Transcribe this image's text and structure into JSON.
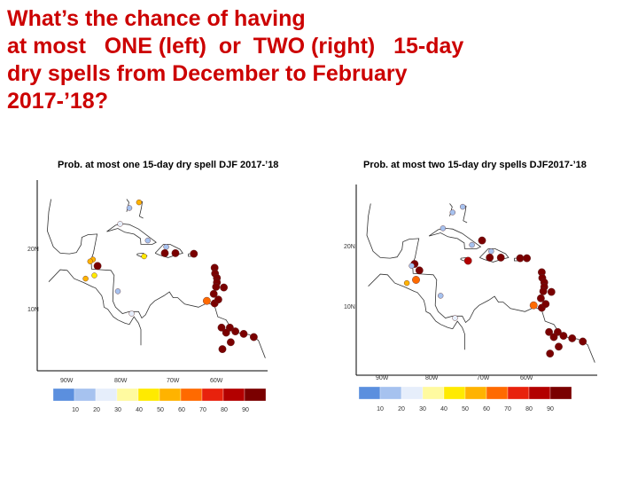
{
  "slide": {
    "title_lines": [
      "What’s the chance of having",
      "at most   ONE (left)  or  TWO (right)   15-day",
      "dry spells from December to February",
      "2017-’18?"
    ]
  },
  "maps": [
    {
      "title": "Prob. at most one 15-day dry spell DJF 2017-’18",
      "lat_labels": [
        "20N",
        "10N"
      ],
      "lon_labels": [
        "90W",
        "80W",
        "70W",
        "60W"
      ],
      "colorbar_ticks": [
        "10",
        "20",
        "30",
        "40",
        "50",
        "60",
        "70",
        "80",
        "90"
      ]
    },
    {
      "title": "Prob. at most two 15-day dry spells DJF2017-’18",
      "lat_labels": [
        "20N",
        "10N"
      ],
      "lon_labels": [
        "90W",
        "80W",
        "70W",
        "60W"
      ],
      "colorbar_ticks": [
        "10",
        "20",
        "30",
        "40",
        "50",
        "60",
        "70",
        "80",
        "90"
      ]
    }
  ],
  "colors": {
    "title": "#cc0000",
    "land_outline": "#333333",
    "colorbar": [
      "#5b8fde",
      "#a6c2ef",
      "#e6eefb",
      "#fffaa0",
      "#ffea00",
      "#ffb300",
      "#ff6a00",
      "#e8220d",
      "#b30000",
      "#7a0000"
    ]
  },
  "stations": {
    "left": [
      {
        "lon": -76.8,
        "lat": 18.0,
        "p": 45
      },
      {
        "lon": -72.3,
        "lat": 18.5,
        "p": 95
      },
      {
        "lon": -70.0,
        "lat": 18.5,
        "p": 90
      },
      {
        "lon": -66.0,
        "lat": 18.4,
        "p": 95
      },
      {
        "lon": -61.5,
        "lat": 16.2,
        "p": 95
      },
      {
        "lon": -61.4,
        "lat": 15.3,
        "p": 95
      },
      {
        "lon": -61.0,
        "lat": 14.6,
        "p": 95
      },
      {
        "lon": -61.0,
        "lat": 13.9,
        "p": 95
      },
      {
        "lon": -59.5,
        "lat": 13.1,
        "p": 95
      },
      {
        "lon": -61.2,
        "lat": 13.2,
        "p": 95
      },
      {
        "lon": -61.7,
        "lat": 12.1,
        "p": 95
      },
      {
        "lon": -61.5,
        "lat": 10.6,
        "p": 95
      },
      {
        "lon": -60.7,
        "lat": 11.2,
        "p": 95
      },
      {
        "lon": -63.2,
        "lat": 11.0,
        "p": 65
      },
      {
        "lon": -60.0,
        "lat": 6.8,
        "p": 95
      },
      {
        "lon": -58.2,
        "lat": 6.8,
        "p": 95
      },
      {
        "lon": -57.0,
        "lat": 6.2,
        "p": 95
      },
      {
        "lon": -55.2,
        "lat": 5.8,
        "p": 95
      },
      {
        "lon": -59.0,
        "lat": 6.0,
        "p": 95
      },
      {
        "lon": -53.0,
        "lat": 5.3,
        "p": 90
      },
      {
        "lon": -58.0,
        "lat": 4.5,
        "p": 95
      },
      {
        "lon": -59.8,
        "lat": 3.4,
        "p": 90
      },
      {
        "lon": -82.0,
        "lat": 23.1,
        "p": 20
      },
      {
        "lon": -77.9,
        "lat": 26.5,
        "p": 50
      },
      {
        "lon": -80.0,
        "lat": 25.6,
        "p": 10
      },
      {
        "lon": -76.0,
        "lat": 20.5,
        "p": 10
      },
      {
        "lon": -72.0,
        "lat": 19.5,
        "p": 10
      },
      {
        "lon": -87.9,
        "lat": 17.5,
        "p": 50
      },
      {
        "lon": -88.5,
        "lat": 17.2,
        "p": 50
      },
      {
        "lon": -86.9,
        "lat": 16.5,
        "p": 90
      },
      {
        "lon": -87.6,
        "lat": 15.0,
        "p": 45
      },
      {
        "lon": -82.5,
        "lat": 12.5,
        "p": 10
      },
      {
        "lon": -89.5,
        "lat": 14.5,
        "p": 50
      },
      {
        "lon": -79.5,
        "lat": 9.0,
        "p": 20
      }
    ],
    "right": [
      {
        "lon": -76.8,
        "lat": 18.0,
        "p": 85
      },
      {
        "lon": -72.3,
        "lat": 18.5,
        "p": 95
      },
      {
        "lon": -70.0,
        "lat": 18.5,
        "p": 95
      },
      {
        "lon": -66.0,
        "lat": 18.4,
        "p": 95
      },
      {
        "lon": -61.5,
        "lat": 16.2,
        "p": 95
      },
      {
        "lon": -61.4,
        "lat": 15.3,
        "p": 95
      },
      {
        "lon": -61.0,
        "lat": 14.6,
        "p": 95
      },
      {
        "lon": -61.0,
        "lat": 13.9,
        "p": 95
      },
      {
        "lon": -59.5,
        "lat": 13.1,
        "p": 95
      },
      {
        "lon": -61.2,
        "lat": 13.2,
        "p": 95
      },
      {
        "lon": -61.7,
        "lat": 12.1,
        "p": 95
      },
      {
        "lon": -61.5,
        "lat": 10.6,
        "p": 95
      },
      {
        "lon": -60.7,
        "lat": 11.2,
        "p": 95
      },
      {
        "lon": -63.2,
        "lat": 11.0,
        "p": 65
      },
      {
        "lon": -60.0,
        "lat": 6.8,
        "p": 95
      },
      {
        "lon": -58.2,
        "lat": 6.8,
        "p": 95
      },
      {
        "lon": -57.0,
        "lat": 6.2,
        "p": 95
      },
      {
        "lon": -55.2,
        "lat": 5.8,
        "p": 95
      },
      {
        "lon": -59.0,
        "lat": 6.0,
        "p": 95
      },
      {
        "lon": -53.0,
        "lat": 5.3,
        "p": 95
      },
      {
        "lon": -58.0,
        "lat": 4.5,
        "p": 95
      },
      {
        "lon": -59.8,
        "lat": 3.4,
        "p": 95
      },
      {
        "lon": -82.0,
        "lat": 23.1,
        "p": 10
      },
      {
        "lon": -77.9,
        "lat": 26.5,
        "p": 15
      },
      {
        "lon": -80.0,
        "lat": 25.6,
        "p": 10
      },
      {
        "lon": -76.0,
        "lat": 20.5,
        "p": 10
      },
      {
        "lon": -72.0,
        "lat": 19.5,
        "p": 10
      },
      {
        "lon": -87.9,
        "lat": 17.5,
        "p": 90
      },
      {
        "lon": -88.5,
        "lat": 17.2,
        "p": 15
      },
      {
        "lon": -86.9,
        "lat": 16.5,
        "p": 90
      },
      {
        "lon": -87.6,
        "lat": 15.0,
        "p": 65
      },
      {
        "lon": -82.5,
        "lat": 12.5,
        "p": 15
      },
      {
        "lon": -89.5,
        "lat": 14.5,
        "p": 50
      },
      {
        "lon": -79.5,
        "lat": 9.0,
        "p": 20
      },
      {
        "lon": -73.9,
        "lat": 21.2,
        "p": 95
      },
      {
        "lon": -64.6,
        "lat": 18.4,
        "p": 95
      }
    ]
  }
}
